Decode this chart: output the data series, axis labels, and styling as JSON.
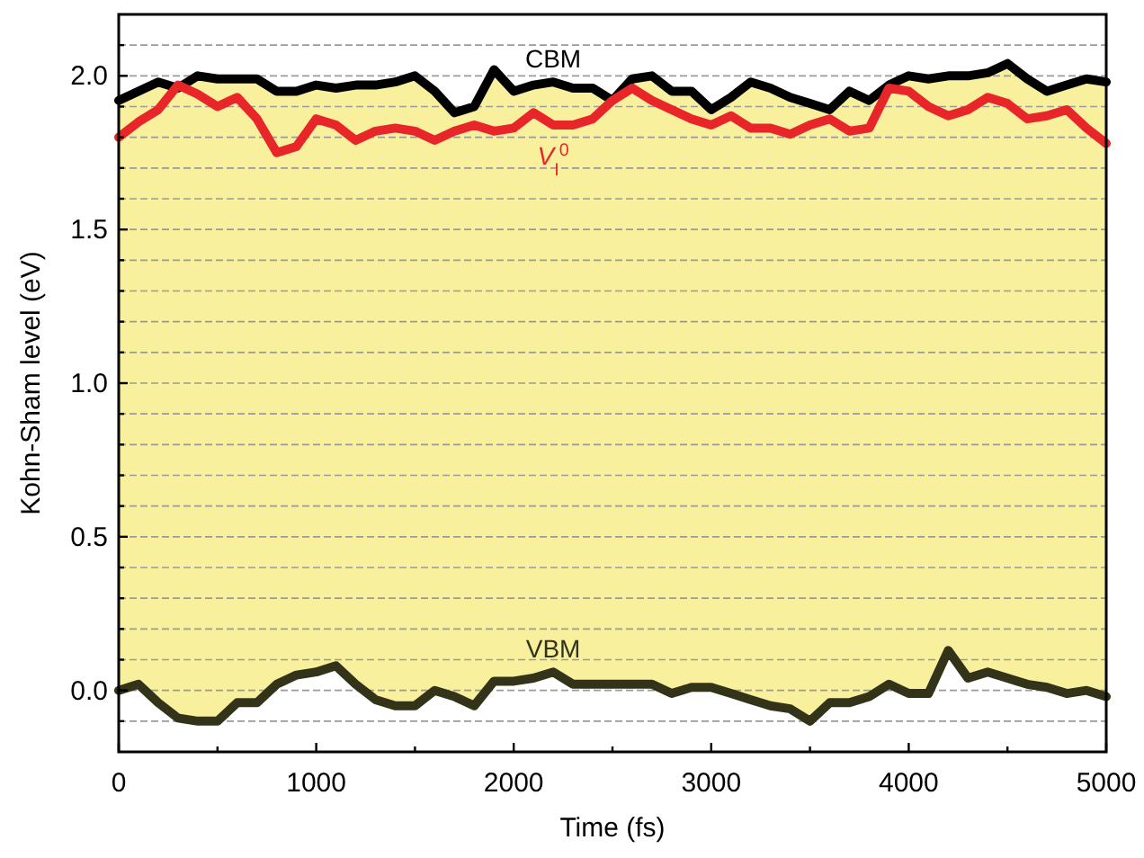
{
  "chart_data": {
    "type": "line",
    "xlabel": "Time (fs)",
    "ylabel": "Kohn-Sham level (eV)",
    "x": [
      0,
      100,
      200,
      300,
      400,
      500,
      600,
      700,
      800,
      900,
      1000,
      1100,
      1200,
      1300,
      1400,
      1500,
      1600,
      1700,
      1800,
      1900,
      2000,
      2100,
      2200,
      2300,
      2400,
      2500,
      2600,
      2700,
      2800,
      2900,
      3000,
      3100,
      3200,
      3300,
      3400,
      3500,
      3600,
      3700,
      3800,
      3900,
      4000,
      4100,
      4200,
      4300,
      4400,
      4500,
      4600,
      4700,
      4800,
      4900,
      5000
    ],
    "series": [
      {
        "name": "CBM",
        "color": "#000000",
        "values": [
          1.92,
          1.95,
          1.98,
          1.96,
          2.0,
          1.99,
          1.99,
          1.99,
          1.95,
          1.95,
          1.97,
          1.96,
          1.97,
          1.97,
          1.98,
          2.0,
          1.95,
          1.88,
          1.9,
          2.02,
          1.95,
          1.97,
          1.98,
          1.96,
          1.96,
          1.92,
          1.99,
          2.0,
          1.95,
          1.95,
          1.89,
          1.93,
          1.98,
          1.96,
          1.93,
          1.91,
          1.89,
          1.95,
          1.92,
          1.97,
          2.0,
          1.99,
          2.0,
          2.0,
          2.01,
          2.04,
          1.99,
          1.95,
          1.97,
          1.99,
          1.98
        ],
        "lower": [
          0.0,
          0.02,
          -0.04,
          -0.09,
          -0.1,
          -0.1,
          -0.04,
          -0.04,
          0.02,
          0.05,
          0.06,
          0.08,
          0.02,
          -0.03,
          -0.05,
          -0.05,
          0.0,
          -0.02,
          -0.05,
          0.03,
          0.03,
          0.04,
          0.06,
          0.02,
          0.02,
          0.02,
          0.02,
          0.02,
          -0.01,
          0.01,
          0.01,
          -0.01,
          -0.03,
          -0.05,
          -0.06,
          -0.1,
          -0.04,
          -0.04,
          -0.02,
          0.02,
          -0.01,
          -0.01,
          0.13,
          0.04,
          0.06,
          0.04,
          0.02,
          0.01,
          -0.01,
          0.0,
          -0.02
        ],
        "upper": [
          1.92,
          1.95,
          1.98,
          1.96,
          2.0,
          1.99,
          1.99,
          1.99,
          1.95,
          1.95,
          1.97,
          1.96,
          1.97,
          1.97,
          1.98,
          2.0,
          1.95,
          1.88,
          1.9,
          2.02,
          1.95,
          1.97,
          1.98,
          1.96,
          1.96,
          1.92,
          1.99,
          2.0,
          1.95,
          1.95,
          1.89,
          1.93,
          1.98,
          1.96,
          1.93,
          1.91,
          1.89,
          1.95,
          1.92,
          1.97,
          2.0,
          1.99,
          2.0,
          2.0,
          2.01,
          2.04,
          1.99,
          1.95,
          1.97,
          1.99,
          1.98
        ]
      },
      {
        "name": "V$_{I}$$^{0}$",
        "color": "#e8262a",
        "values": [
          1.8,
          1.85,
          1.89,
          1.97,
          1.94,
          1.9,
          1.93,
          1.86,
          1.75,
          1.77,
          1.86,
          1.84,
          1.79,
          1.82,
          1.83,
          1.82,
          1.79,
          1.82,
          1.84,
          1.82,
          1.83,
          1.88,
          1.84,
          1.84,
          1.86,
          1.92,
          1.96,
          1.92,
          1.89,
          1.86,
          1.84,
          1.87,
          1.83,
          1.83,
          1.81,
          1.84,
          1.86,
          1.82,
          1.83,
          1.96,
          1.95,
          1.9,
          1.87,
          1.89,
          1.93,
          1.91,
          1.86,
          1.87,
          1.89,
          1.83,
          1.78
        ]
      },
      {
        "name": "VBM",
        "color": "#33331a",
        "values": [
          0.0,
          0.02,
          -0.04,
          -0.09,
          -0.1,
          -0.1,
          -0.04,
          -0.04,
          0.02,
          0.05,
          0.06,
          0.08,
          0.02,
          -0.03,
          -0.05,
          -0.05,
          0.0,
          -0.02,
          -0.05,
          0.03,
          0.03,
          0.04,
          0.06,
          0.02,
          0.02,
          0.02,
          0.02,
          0.02,
          -0.01,
          0.01,
          0.01,
          -0.01,
          -0.03,
          -0.05,
          -0.06,
          -0.1,
          -0.04,
          -0.04,
          -0.02,
          0.02,
          -0.01,
          -0.01,
          0.13,
          0.04,
          0.06,
          0.04,
          0.02,
          0.01,
          -0.01,
          0.0,
          -0.02
        ]
      }
    ],
    "xlim": [
      0,
      5000
    ],
    "xticks": [
      0,
      {
        "value": 500,
        "label": null
      },
      1000,
      {
        "value": 1500,
        "label": null
      },
      2000,
      {
        "value": 2500,
        "label": null
      },
      3000,
      {
        "value": 3500,
        "label": null
      },
      4000,
      {
        "value": 4500,
        "label": null
      },
      5000
    ],
    "ylim": [
      -0.2,
      2.2
    ],
    "yticks": [
      {
        "value": -0.1,
        "label": null
      },
      {
        "value": 0,
        "label": "0.0"
      },
      {
        "value": 0.1,
        "label": null
      },
      {
        "value": 0.2,
        "label": null
      },
      {
        "value": 0.3,
        "label": null
      },
      {
        "value": 0.4,
        "label": null
      },
      0.5,
      {
        "value": 0.6,
        "label": null
      },
      {
        "value": 0.7,
        "label": null
      },
      {
        "value": 0.8,
        "label": null
      },
      {
        "value": 0.9,
        "label": null
      },
      {
        "value": 1,
        "label": "1.0"
      },
      {
        "value": 1.1,
        "label": null
      },
      {
        "value": 1.2,
        "label": null
      },
      {
        "value": 1.3,
        "label": null
      },
      {
        "value": 1.4,
        "label": null
      },
      1.5,
      {
        "value": 1.6,
        "label": null
      },
      {
        "value": 1.7,
        "label": null
      },
      {
        "value": 1.8,
        "label": null
      },
      {
        "value": 1.9,
        "label": null
      },
      {
        "value": 2,
        "label": "2.0"
      },
      {
        "value": 2.1,
        "label": null
      }
    ],
    "grid": "y",
    "marker": "none",
    "line_style": "solid"
  }
}
